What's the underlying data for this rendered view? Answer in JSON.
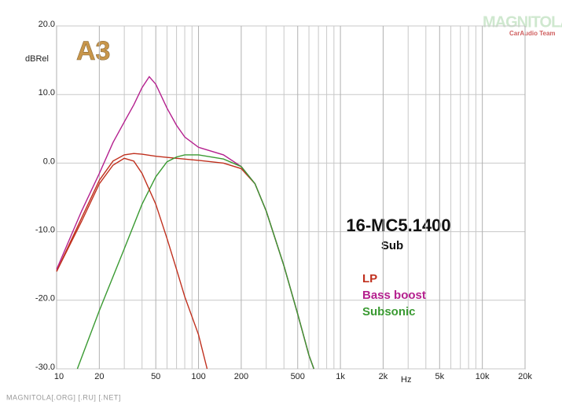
{
  "chart_data": {
    "type": "line",
    "title": "16-MC5.1400",
    "subtitle": "Sub",
    "y_label": "dBRel",
    "x_label": "Hz",
    "logo": "A3",
    "watermark": "MAGNITOLA",
    "watermark_sub": "CarAudio Team",
    "footer": "MAGNITOLA[.ORG] [.RU] [.NET]",
    "xlog": true,
    "grid": true,
    "xlim": [
      10,
      20000
    ],
    "ylim": [
      -30,
      20
    ],
    "xticks": [
      10,
      20,
      50,
      100,
      200,
      500,
      {
        "value": 1000,
        "label": "1k"
      },
      {
        "value": 2000,
        "label": "2k"
      },
      {
        "value": 5000,
        "label": "5k"
      },
      {
        "value": 10000,
        "label": "10k"
      },
      {
        "value": 20000,
        "label": "20k"
      }
    ],
    "xminor": [
      30,
      40,
      60,
      70,
      80,
      90,
      300,
      400,
      600,
      700,
      800,
      900,
      3000,
      4000,
      6000,
      7000,
      8000,
      9000
    ],
    "yticks": [
      {
        "value": -30,
        "label": "-30.0"
      },
      {
        "value": -20,
        "label": "-20.0"
      },
      {
        "value": -10,
        "label": "-10.0"
      },
      {
        "value": 0,
        "label": "0.0"
      },
      {
        "value": 10,
        "label": "10.0"
      },
      {
        "value": 20,
        "label": "20.0"
      }
    ],
    "series": [
      {
        "name": "LP",
        "color": "#c0301e",
        "x": [
          10,
          15,
          20,
          25,
          30,
          35,
          40,
          50,
          70,
          100,
          150,
          200,
          250,
          300,
          400,
          500,
          600,
          650
        ],
        "values": [
          -15.8,
          -8,
          -2.5,
          0.3,
          1.2,
          1.4,
          1.3,
          1.0,
          0.7,
          0.4,
          0.0,
          -0.8,
          -3,
          -7,
          -15,
          -22,
          -28,
          -30
        ]
      },
      {
        "name": "Bass boost",
        "color": "#b4208e",
        "x": [
          10,
          15,
          20,
          25,
          30,
          35,
          40,
          45,
          50,
          60,
          70,
          80,
          100,
          150,
          200,
          250,
          300,
          400,
          500,
          600,
          650
        ],
        "values": [
          -15.5,
          -7,
          -1.5,
          3,
          6,
          8.5,
          11,
          12.6,
          11.5,
          8,
          5.5,
          3.8,
          2.3,
          1.2,
          -0.5,
          -3,
          -7,
          -15,
          -22,
          -28,
          -30
        ]
      },
      {
        "name": "Subsonic",
        "color": "#3a9a32",
        "x": [
          14,
          20,
          30,
          40,
          50,
          60,
          70,
          80,
          100,
          150,
          200,
          250,
          300,
          400,
          500,
          600,
          650
        ],
        "values": [
          -30,
          -21.5,
          -12.5,
          -6,
          -2,
          0.2,
          0.9,
          1.2,
          1.2,
          0.6,
          -0.5,
          -3,
          -7,
          -15,
          -22,
          -28,
          -30
        ]
      },
      {
        "color": "#c0301e",
        "x": [
          10,
          15,
          20,
          25,
          30,
          35,
          40,
          50,
          60,
          70,
          80,
          100,
          115
        ],
        "values": [
          -15.8,
          -8.5,
          -3,
          -0.3,
          0.7,
          0.3,
          -1.5,
          -6,
          -11,
          -15.5,
          -19.5,
          -25,
          -30
        ]
      }
    ]
  }
}
